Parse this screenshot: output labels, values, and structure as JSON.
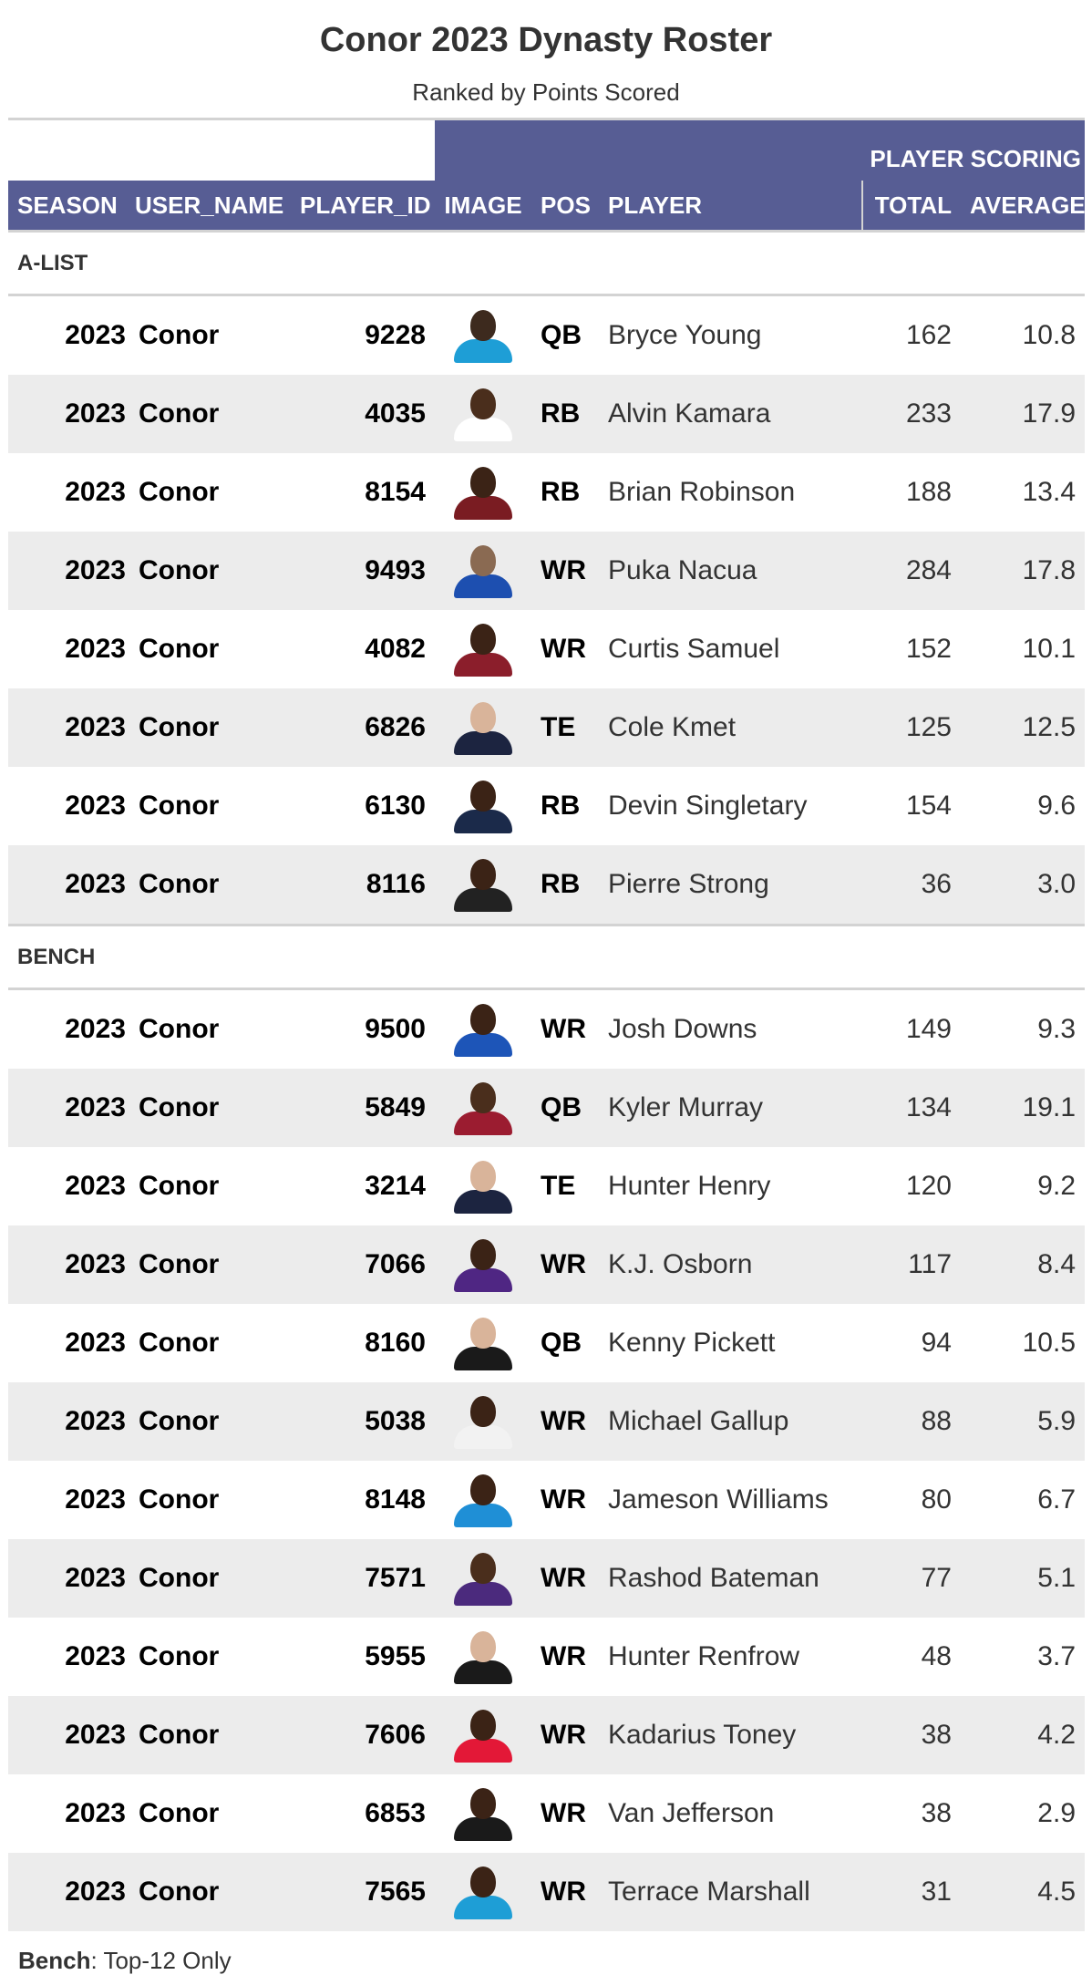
{
  "title": "Conor 2023 Dynasty Roster",
  "subtitle": "Ranked by Points Scored",
  "spanner": "PLAYER SCORING",
  "columns": {
    "season": "SEASON",
    "user_name": "USER_NAME",
    "player_id": "PLAYER_ID",
    "image": "IMAGE",
    "pos": "POS",
    "player": "PLAYER",
    "total": "TOTAL",
    "average": "AVERAGE"
  },
  "groups": [
    {
      "label": "A-LIST",
      "rows": [
        {
          "season": "2023",
          "user": "Conor",
          "pid": "9228",
          "jersey": "#1e9ed6",
          "skin": "#3d2a1e",
          "pos": "QB",
          "player": "Bryce Young",
          "total": "162",
          "avg": "10.8"
        },
        {
          "season": "2023",
          "user": "Conor",
          "pid": "4035",
          "jersey": "#ffffff",
          "skin": "#4a2e1c",
          "pos": "RB",
          "player": "Alvin Kamara",
          "total": "233",
          "avg": "17.9"
        },
        {
          "season": "2023",
          "user": "Conor",
          "pid": "8154",
          "jersey": "#7a1c22",
          "skin": "#3b2316",
          "pos": "RB",
          "player": "Brian Robinson",
          "total": "188",
          "avg": "13.4"
        },
        {
          "season": "2023",
          "user": "Conor",
          "pid": "9493",
          "jersey": "#1d4fb0",
          "skin": "#8a6a52",
          "pos": "WR",
          "player": "Puka Nacua",
          "total": "284",
          "avg": "17.8"
        },
        {
          "season": "2023",
          "user": "Conor",
          "pid": "4082",
          "jersey": "#8b1e2b",
          "skin": "#3b2316",
          "pos": "WR",
          "player": "Curtis Samuel",
          "total": "152",
          "avg": "10.1"
        },
        {
          "season": "2023",
          "user": "Conor",
          "pid": "6826",
          "jersey": "#1c2440",
          "skin": "#d9b49a",
          "pos": "TE",
          "player": "Cole Kmet",
          "total": "125",
          "avg": "12.5"
        },
        {
          "season": "2023",
          "user": "Conor",
          "pid": "6130",
          "jersey": "#1b2a4a",
          "skin": "#3b2316",
          "pos": "RB",
          "player": "Devin Singletary",
          "total": "154",
          "avg": "9.6"
        },
        {
          "season": "2023",
          "user": "Conor",
          "pid": "8116",
          "jersey": "#222222",
          "skin": "#3b2316",
          "pos": "RB",
          "player": "Pierre Strong",
          "total": "36",
          "avg": "3.0"
        }
      ]
    },
    {
      "label": "BENCH",
      "rows": [
        {
          "season": "2023",
          "user": "Conor",
          "pid": "9500",
          "jersey": "#1d55b8",
          "skin": "#3b2316",
          "pos": "WR",
          "player": "Josh Downs",
          "total": "149",
          "avg": "9.3"
        },
        {
          "season": "2023",
          "user": "Conor",
          "pid": "5849",
          "jersey": "#9b1c30",
          "skin": "#4a2e1c",
          "pos": "QB",
          "player": "Kyler Murray",
          "total": "134",
          "avg": "19.1"
        },
        {
          "season": "2023",
          "user": "Conor",
          "pid": "3214",
          "jersey": "#1c2440",
          "skin": "#d9b49a",
          "pos": "TE",
          "player": "Hunter Henry",
          "total": "120",
          "avg": "9.2"
        },
        {
          "season": "2023",
          "user": "Conor",
          "pid": "7066",
          "jersey": "#4f2683",
          "skin": "#3b2316",
          "pos": "WR",
          "player": "K.J. Osborn",
          "total": "117",
          "avg": "8.4"
        },
        {
          "season": "2023",
          "user": "Conor",
          "pid": "8160",
          "jersey": "#1a1a1a",
          "skin": "#d9b49a",
          "pos": "QB",
          "player": "Kenny Pickett",
          "total": "94",
          "avg": "10.5"
        },
        {
          "season": "2023",
          "user": "Conor",
          "pid": "5038",
          "jersey": "#f2f2f2",
          "skin": "#3b2316",
          "pos": "WR",
          "player": "Michael Gallup",
          "total": "88",
          "avg": "5.9"
        },
        {
          "season": "2023",
          "user": "Conor",
          "pid": "8148",
          "jersey": "#1f8fd6",
          "skin": "#3b2316",
          "pos": "WR",
          "player": "Jameson Williams",
          "total": "80",
          "avg": "6.7"
        },
        {
          "season": "2023",
          "user": "Conor",
          "pid": "7571",
          "jersey": "#4b2a7d",
          "skin": "#4a2e1c",
          "pos": "WR",
          "player": "Rashod Bateman",
          "total": "77",
          "avg": "5.1"
        },
        {
          "season": "2023",
          "user": "Conor",
          "pid": "5955",
          "jersey": "#1a1a1a",
          "skin": "#d9b49a",
          "pos": "WR",
          "player": "Hunter Renfrow",
          "total": "48",
          "avg": "3.7"
        },
        {
          "season": "2023",
          "user": "Conor",
          "pid": "7606",
          "jersey": "#e31837",
          "skin": "#3b2316",
          "pos": "WR",
          "player": "Kadarius Toney",
          "total": "38",
          "avg": "4.2"
        },
        {
          "season": "2023",
          "user": "Conor",
          "pid": "6853",
          "jersey": "#1a1a1a",
          "skin": "#3b2316",
          "pos": "WR",
          "player": "Van Jefferson",
          "total": "38",
          "avg": "2.9"
        },
        {
          "season": "2023",
          "user": "Conor",
          "pid": "7565",
          "jersey": "#1e9ed6",
          "skin": "#3b2316",
          "pos": "WR",
          "player": "Terrace Marshall",
          "total": "31",
          "avg": "4.5"
        }
      ]
    }
  ],
  "footnote": {
    "bold": "Bench",
    "text": ": Top-12 Only"
  }
}
